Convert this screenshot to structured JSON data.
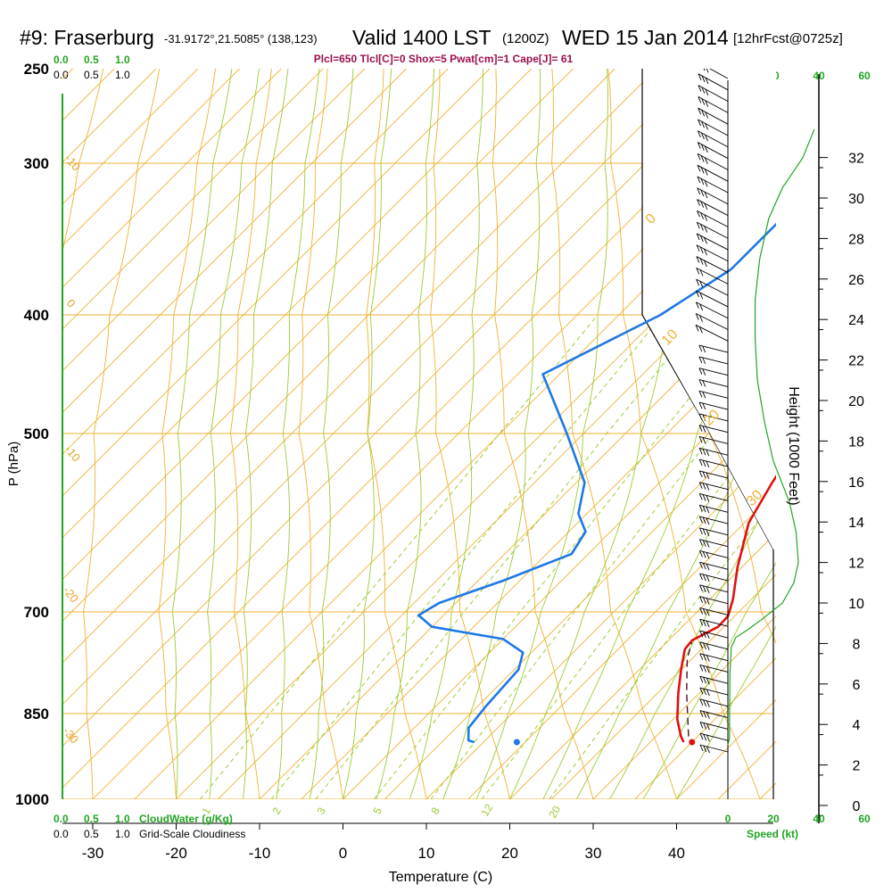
{
  "header": {
    "station": "#9: Fraserburg",
    "location": "-31.9172°,21.5085° (138,123)",
    "valid": "Valid 1400 LST",
    "zulu": "(1200Z)",
    "date": "WED 15 Jan 2014",
    "forecast": "[12hrFcst@0725z]",
    "parameters": "Plcl=650 Tlcl[C]=0 Shox=5 Pwat[cm]=1 Cape[J]= 61"
  },
  "chart_data": {
    "type": "line",
    "subtype": "skew-T log-P sounding",
    "xlabel": "Temperature (C)",
    "ylabel": "P (hPa)",
    "right_label": "Height (1000 Feet)",
    "x_ticks": [
      "-30",
      "-20",
      "-10",
      "0",
      "10",
      "20",
      "30",
      "40"
    ],
    "x_tick_values": [
      -30,
      -20,
      -10,
      0,
      10,
      20,
      30,
      40
    ],
    "p_ticks": [
      250,
      300,
      400,
      500,
      700,
      850,
      1000
    ],
    "p_tick_labels": [
      "250",
      "300",
      "400",
      "500",
      "700",
      "850",
      "1000"
    ],
    "height_ticks": [
      0,
      2,
      4,
      6,
      8,
      10,
      12,
      14,
      16,
      18,
      20,
      22,
      24,
      26,
      28,
      30,
      32
    ],
    "height_tick_labels": [
      "0",
      "2",
      "4",
      "6",
      "8",
      "10",
      "12",
      "14",
      "16",
      "18",
      "20",
      "22",
      "24",
      "26",
      "28",
      "30",
      "32"
    ],
    "skew_isotherm_labels": [
      "0",
      "10",
      "20",
      "30"
    ],
    "left_isotherm_labels": [
      "-10",
      "0",
      "-10",
      "-20",
      "-30"
    ],
    "mixing_ratio_labels": [
      "1",
      "2",
      "3",
      "5",
      "8",
      "12",
      "20"
    ],
    "series": [
      {
        "name": "Temperature",
        "color": "#e01010",
        "points": [
          [
            34.0,
            900
          ],
          [
            33.0,
            890
          ],
          [
            30.5,
            860
          ],
          [
            27.5,
            820
          ],
          [
            25.0,
            785
          ],
          [
            23.0,
            755
          ],
          [
            22.8,
            742
          ],
          [
            24.3,
            722
          ],
          [
            24.2,
            706
          ],
          [
            22.8,
            686
          ],
          [
            19.5,
            650
          ],
          [
            15.5,
            600
          ],
          [
            13.5,
            555
          ],
          [
            11.5,
            500
          ],
          [
            9.5,
            450
          ],
          [
            7.5,
            400
          ],
          [
            5.5,
            370
          ],
          [
            3.0,
            330
          ],
          [
            1.5,
            300
          ],
          [
            0.5,
            285
          ],
          [
            -0.5,
            270
          ]
        ]
      },
      {
        "name": "Dewpoint",
        "color": "#1e78e6",
        "points": [
          [
            8.9,
            900
          ],
          [
            8.0,
            897
          ],
          [
            6.5,
            875
          ],
          [
            6.0,
            840
          ],
          [
            5.5,
            785
          ],
          [
            4.0,
            760
          ],
          [
            0.0,
            740
          ],
          [
            -10.0,
            722
          ],
          [
            -13.0,
            705
          ],
          [
            -12.0,
            690
          ],
          [
            -7.0,
            665
          ],
          [
            -2.0,
            635
          ],
          [
            -3.0,
            610
          ],
          [
            -6.0,
            590
          ],
          [
            -9.0,
            555
          ],
          [
            -17.0,
            500
          ],
          [
            -27.0,
            450
          ],
          [
            -20.0,
            400
          ],
          [
            -17.0,
            370
          ],
          [
            -17.0,
            340
          ],
          [
            -18.0,
            315
          ],
          [
            -20.0,
            285
          ],
          [
            -21.0,
            270
          ]
        ]
      },
      {
        "name": "Parcel",
        "color": "#50102a",
        "points": [
          [
            33.9,
            890
          ],
          [
            28.5,
            820
          ],
          [
            24.5,
            770
          ],
          [
            23.0,
            745
          ]
        ]
      }
    ],
    "surface_temperature_dot": 35.0,
    "surface_dewpoint_dot": 14.0,
    "surface_pressure": 900,
    "top_scales": {
      "left_values": [
        "0.0",
        "0.5",
        "1.0"
      ],
      "right_values": [
        "0",
        "20",
        "40",
        "60"
      ]
    },
    "bottom_scales": {
      "cloudwater_values": [
        "0.0",
        "0.5",
        "1.0"
      ],
      "cloudwater_label": "CloudWater (g/Kg)",
      "cloudiness_values": [
        "0.0",
        "0.5",
        "1.0"
      ],
      "cloudiness_label": "Grid-Scale Cloudiness",
      "speed_values": [
        "0",
        "20",
        "40",
        "60"
      ],
      "speed_label": "Speed (kt)"
    },
    "wind_speed_profile": [
      [
        0.0,
        3.0
      ],
      [
        0.7,
        3.3
      ],
      [
        0.8,
        5.0
      ],
      [
        0.9,
        6.5
      ],
      [
        1.5,
        7.8
      ],
      [
        3.5,
        8.3
      ],
      [
        9.0,
        8.7
      ],
      [
        15.0,
        9.2
      ],
      [
        24.0,
        10.0
      ],
      [
        29.0,
        11.0
      ],
      [
        31.0,
        12.0
      ],
      [
        30.0,
        13.5
      ],
      [
        27.0,
        15.0
      ],
      [
        20.0,
        17.0
      ],
      [
        16.0,
        19.0
      ],
      [
        13.0,
        21.0
      ],
      [
        12.0,
        23.0
      ],
      [
        12.0,
        25.0
      ],
      [
        14.0,
        27.0
      ],
      [
        18.0,
        29.0
      ],
      [
        24.0,
        30.5
      ],
      [
        33.0,
        32.0
      ],
      [
        38.0,
        33.4
      ]
    ],
    "wind_levels": 60,
    "grid": true,
    "colors": {
      "isobar": "#f0b030",
      "isotherm": "#f0b030",
      "dry_adiabat": "#f0b030",
      "moist_adiabat": "#9acd32",
      "mixing_ratio": "#9acd32",
      "wind_profile": "#22a522",
      "frame": "#000000"
    }
  }
}
